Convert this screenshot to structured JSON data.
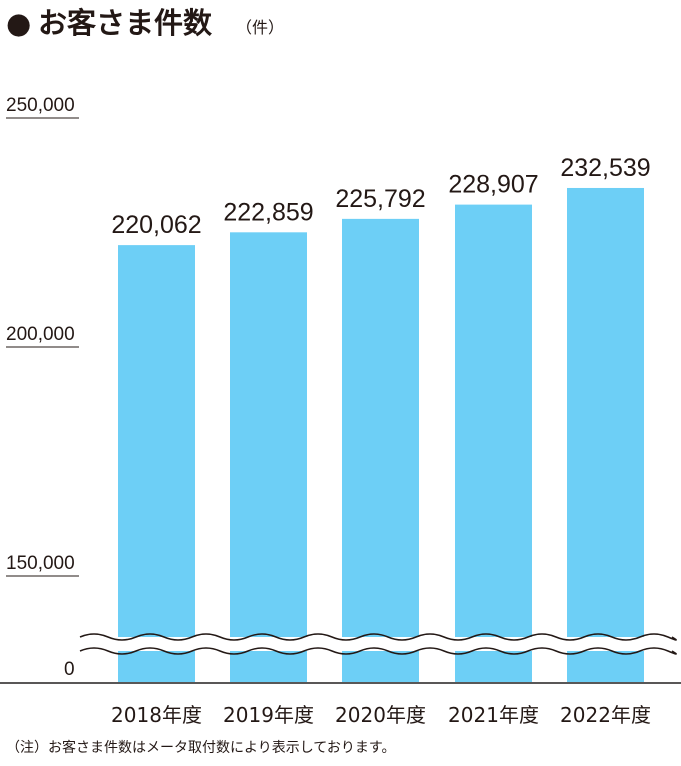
{
  "title": {
    "bullet": "●",
    "text": "お客さま件数",
    "unit": "（件）"
  },
  "note": "（注）お客さま件数はメータ取付数により表示しております。",
  "colors": {
    "bar": "#6dcff6",
    "text": "#231815",
    "axis": "#595757"
  },
  "chart_data": {
    "type": "bar",
    "title": "お客さま件数",
    "unit": "（件）",
    "categories": [
      "2018年度",
      "2019年度",
      "2020年度",
      "2021年度",
      "2022年度"
    ],
    "values": [
      220062,
      222859,
      225792,
      228907,
      232539
    ],
    "value_labels": [
      "220,062",
      "222,859",
      "225,792",
      "228,907",
      "232,539"
    ],
    "y_ticks": [
      {
        "value": 250000,
        "label": "250,000"
      },
      {
        "value": 200000,
        "label": "200,000"
      },
      {
        "value": 150000,
        "label": "150,000"
      },
      {
        "value": 0,
        "label": "0"
      }
    ],
    "ylim": [
      0,
      250000
    ],
    "axis_break": "between 0 and 150,000",
    "grid": false,
    "legend": "none"
  }
}
